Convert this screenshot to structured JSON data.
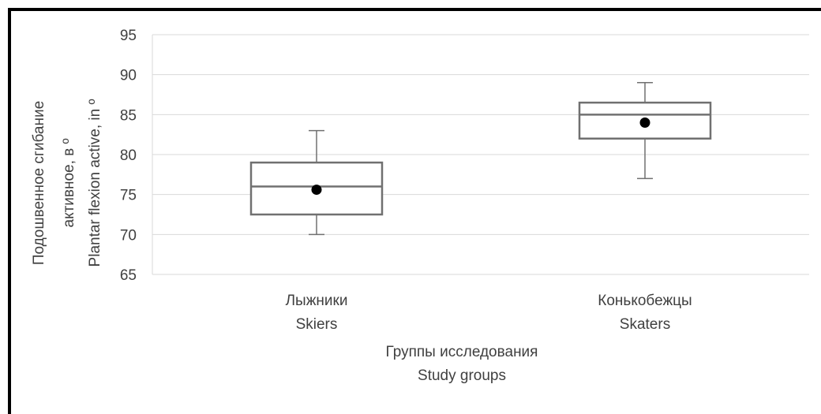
{
  "chart_data": {
    "type": "boxplot",
    "ylim": [
      65,
      95
    ],
    "yticks": [
      65,
      70,
      75,
      80,
      85,
      90,
      95
    ],
    "grid": true,
    "ylabel_lines": [
      "Подошвенное сгибание",
      "активное, в º",
      "Plantar flexion active, in º"
    ],
    "xlabel_lines": [
      "Группы исследования",
      "Study  groups"
    ],
    "categories": [
      {
        "lines": [
          "Лыжники",
          "Skiers"
        ],
        "whisker_low": 70,
        "q1": 72.5,
        "median": 76,
        "q3": 79,
        "whisker_high": 83,
        "mean": 75.6
      },
      {
        "lines": [
          "Конькобежцы",
          "Skaters"
        ],
        "whisker_low": 77,
        "q1": 82,
        "median": 85,
        "q3": 86.5,
        "whisker_high": 89,
        "mean": 84
      }
    ],
    "colors": {
      "box": "#707070",
      "grid": "#d9d9d9",
      "mean": "#000000",
      "text": "#404040"
    }
  }
}
